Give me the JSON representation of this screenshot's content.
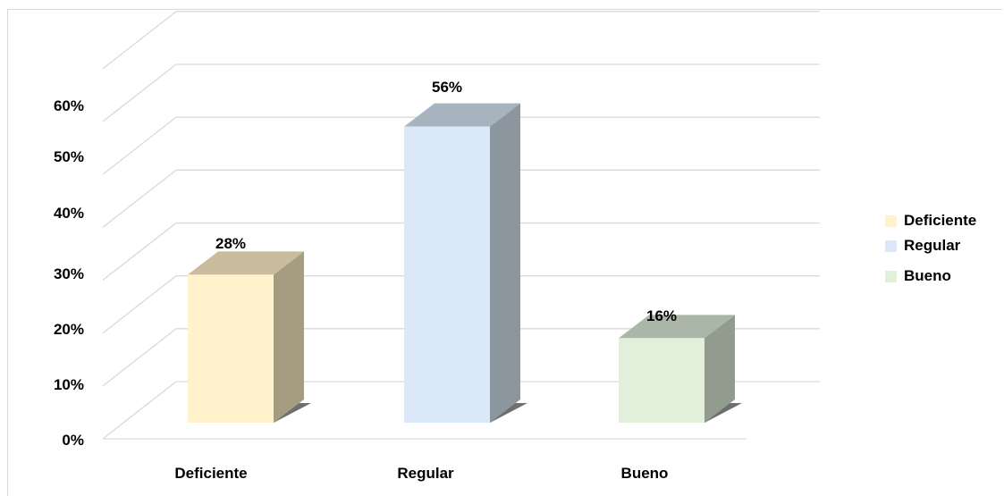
{
  "chart_data": {
    "type": "bar",
    "categories": [
      "Deficiente",
      "Regular",
      "Bueno"
    ],
    "values": [
      28,
      56,
      16
    ],
    "value_labels": [
      "28%",
      "56%",
      "16%"
    ],
    "y_ticks": [
      "0%",
      "10%",
      "20%",
      "30%",
      "40%",
      "50%",
      "60%"
    ],
    "ylim": [
      0,
      60
    ],
    "grid": true,
    "legend_position": "right",
    "legend": [
      "Deficiente",
      "Regular",
      "Bueno"
    ],
    "colors": {
      "Deficiente": {
        "front": "#fff2cc",
        "side": "#a69c82",
        "top": "#c8bc9c"
      },
      "Regular": {
        "front": "#dae8f7",
        "side": "#8c969e",
        "top": "#a7b3bf"
      },
      "Bueno": {
        "front": "#e2efda",
        "side": "#919b8e",
        "top": "#aab6a7"
      }
    }
  }
}
